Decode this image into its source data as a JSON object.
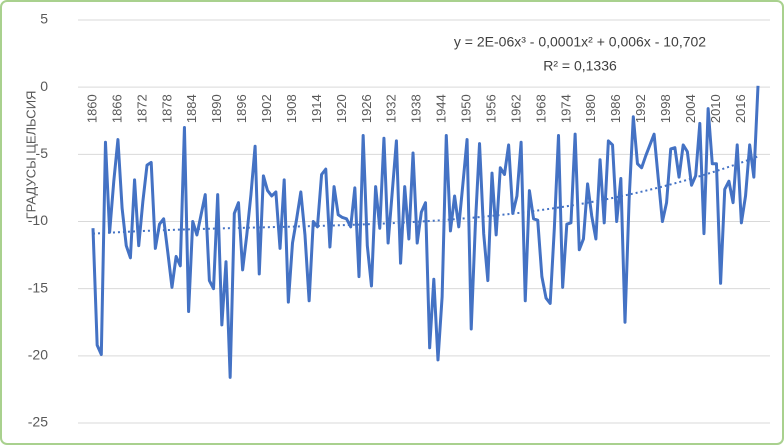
{
  "chart_data": {
    "type": "line",
    "y_label": "ГРАДУСЫ ЦЕЛЬСИЯ",
    "equation": "y = 2E-06x³ - 0,0001x² + 0,006x - 10,702",
    "r_squared": "R² = 0,1336",
    "x": [
      1860,
      1861,
      1862,
      1863,
      1864,
      1865,
      1866,
      1867,
      1868,
      1869,
      1870,
      1871,
      1872,
      1873,
      1874,
      1875,
      1876,
      1877,
      1878,
      1879,
      1880,
      1881,
      1882,
      1883,
      1884,
      1885,
      1886,
      1887,
      1888,
      1889,
      1890,
      1891,
      1892,
      1893,
      1894,
      1895,
      1896,
      1897,
      1898,
      1899,
      1900,
      1901,
      1902,
      1903,
      1904,
      1905,
      1906,
      1907,
      1908,
      1909,
      1910,
      1911,
      1912,
      1913,
      1914,
      1915,
      1916,
      1917,
      1918,
      1919,
      1920,
      1921,
      1922,
      1923,
      1924,
      1925,
      1926,
      1927,
      1928,
      1929,
      1930,
      1931,
      1932,
      1933,
      1934,
      1935,
      1936,
      1937,
      1938,
      1939,
      1940,
      1941,
      1942,
      1943,
      1944,
      1945,
      1946,
      1947,
      1948,
      1949,
      1950,
      1951,
      1952,
      1953,
      1954,
      1955,
      1956,
      1957,
      1958,
      1959,
      1960,
      1961,
      1962,
      1963,
      1964,
      1965,
      1966,
      1967,
      1968,
      1969,
      1970,
      1971,
      1972,
      1973,
      1974,
      1975,
      1976,
      1977,
      1978,
      1979,
      1980,
      1981,
      1982,
      1983,
      1984,
      1985,
      1986,
      1987,
      1988,
      1989,
      1990,
      1991,
      1992,
      1993,
      1994,
      1995,
      1996,
      1997,
      1998,
      1999,
      2000,
      2001,
      2002,
      2003,
      2004,
      2005,
      2006,
      2007,
      2008,
      2009,
      2010,
      2011,
      2012,
      2013,
      2014,
      2015,
      2016,
      2017,
      2018,
      2019,
      2020
    ],
    "series": [
      {
        "color": "#4472c4",
        "values": [
          -10.5,
          -19.2,
          -19.9,
          -4.1,
          -10.8,
          -7,
          -3.9,
          -9,
          -11.8,
          -12.7,
          -6.9,
          -11.8,
          -8.5,
          -5.8,
          -5.6,
          -12,
          -10.2,
          -9.8,
          -12.3,
          -14.9,
          -12.6,
          -13.3,
          -3,
          -16.7,
          -10,
          -11,
          -9.5,
          -8,
          -14.4,
          -15,
          -8,
          -17.7,
          -13,
          -21.6,
          -9.4,
          -8.6,
          -13.6,
          -11,
          -8,
          -4.4,
          -13.9,
          -6.6,
          -7.7,
          -8.1,
          -7.8,
          -12,
          -6.9,
          -16,
          -11.6,
          -9.8,
          -7.8,
          -11,
          -15.9,
          -10,
          -10.4,
          -6.5,
          -6.1,
          -11.9,
          -7.4,
          -9.5,
          -9.7,
          -9.8,
          -10.4,
          -7.5,
          -14.1,
          -3.6,
          -11.8,
          -14.8,
          -7.4,
          -10.5,
          -3.8,
          -11.6,
          -7.8,
          -4,
          -13.1,
          -7.4,
          -11.3,
          -4.9,
          -11.6,
          -9.3,
          -8.6,
          -19.4,
          -14.3,
          -20.3,
          -15.6,
          -3.6,
          -10.7,
          -8.1,
          -10.4,
          -7.2,
          -3.9,
          -18,
          -10.2,
          -4.2,
          -10.9,
          -14.4,
          -6.4,
          -11,
          -6,
          -6.5,
          -4.3,
          -9.4,
          -8.1,
          -4.1,
          -15.9,
          -7.7,
          -9.8,
          -9.9,
          -14.1,
          -15.7,
          -16.1,
          -10.5,
          -3.6,
          -14.9,
          -10.2,
          -10.1,
          -3.5,
          -12.1,
          -11.3,
          -7.2,
          -9.6,
          -11.3,
          -5.4,
          -10.1,
          -4,
          -4.3,
          -10,
          -6.8,
          -17.5,
          -8.3,
          -2.2,
          -5.7,
          -6,
          -5.1,
          -4.3,
          -3.5,
          -6.8,
          -10,
          -8.6,
          -4.6,
          -4.5,
          -6.7,
          -4.3,
          -4.8,
          -7.3,
          -6.6,
          -2.7,
          -10.9,
          -1.6,
          -5.7,
          -5.7,
          -14.6,
          -7.6,
          -7,
          -8.6,
          -4.3,
          -10.1,
          -8.1,
          -4.3,
          -6.7,
          0.1
        ]
      }
    ],
    "trendline": {
      "type": "polynomial",
      "order": 3,
      "color": "#4472c4"
    },
    "xlim": [
      1860,
      2020
    ],
    "xticks": [
      1860,
      1866,
      1872,
      1878,
      1884,
      1890,
      1896,
      1902,
      1908,
      1914,
      1920,
      1926,
      1932,
      1938,
      1944,
      1950,
      1956,
      1962,
      1968,
      1974,
      1980,
      1986,
      1992,
      1998,
      2004,
      2010,
      2016
    ],
    "ylim": [
      -25,
      5
    ],
    "yticks": [
      5,
      0,
      -5,
      -10,
      -15,
      -20,
      -25
    ],
    "grid": true
  }
}
